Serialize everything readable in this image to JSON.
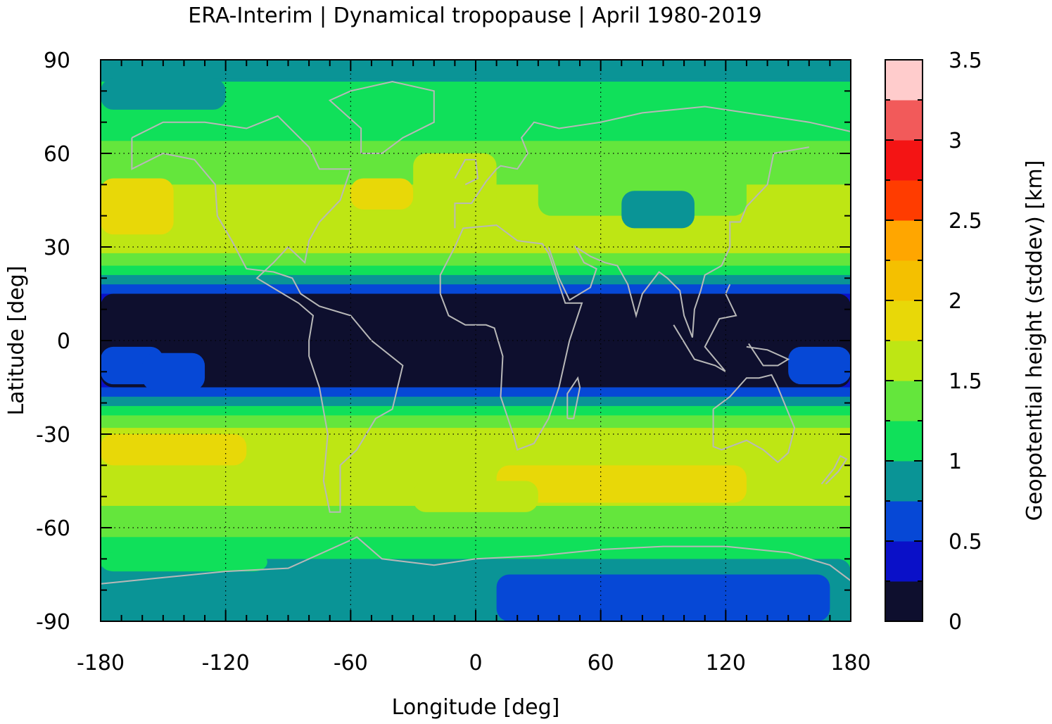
{
  "chart_data": {
    "type": "heatmap",
    "title": "ERA-Interim | Dynamical tropopause | April 1980-2019",
    "xlabel": "Longitude [deg]",
    "ylabel": "Latitude [deg]",
    "xlim": [
      -180,
      180
    ],
    "ylim": [
      -90,
      90
    ],
    "xticks": [
      -180,
      -120,
      -60,
      0,
      60,
      120,
      180
    ],
    "yticks": [
      90,
      60,
      30,
      0,
      -30,
      -60,
      -90
    ],
    "grid": true,
    "colorbar": {
      "label": "Geopotential height (stddev) [km]",
      "range": [
        0,
        3.5
      ],
      "ticks": [
        0,
        0.5,
        1,
        1.5,
        2,
        2.5,
        3,
        3.5
      ],
      "levels": [
        0,
        0.25,
        0.5,
        0.75,
        1,
        1.25,
        1.5,
        1.75,
        2,
        2.25,
        2.5,
        2.75,
        3,
        3.25,
        3.5
      ],
      "colors": [
        "#0e0f2e",
        "#0a10c8",
        "#0648d6",
        "#0a9496",
        "#10e05a",
        "#64e63c",
        "#bee614",
        "#e8d808",
        "#f4c000",
        "#ffa600",
        "#ff3c00",
        "#f41414",
        "#f25a5a",
        "#ffcccc"
      ]
    },
    "zonal_profile": {
      "description_lat": [
        90,
        75,
        60,
        45,
        30,
        22,
        15,
        10,
        0,
        -10,
        -15,
        -22,
        -30,
        -45,
        -60,
        -70,
        -80,
        -90
      ],
      "stddev_km": [
        0.9,
        1.1,
        1.3,
        1.6,
        1.6,
        1.1,
        0.5,
        0.2,
        0.1,
        0.2,
        0.5,
        1.1,
        1.6,
        1.7,
        1.3,
        1.1,
        0.7,
        0.9
      ]
    }
  }
}
